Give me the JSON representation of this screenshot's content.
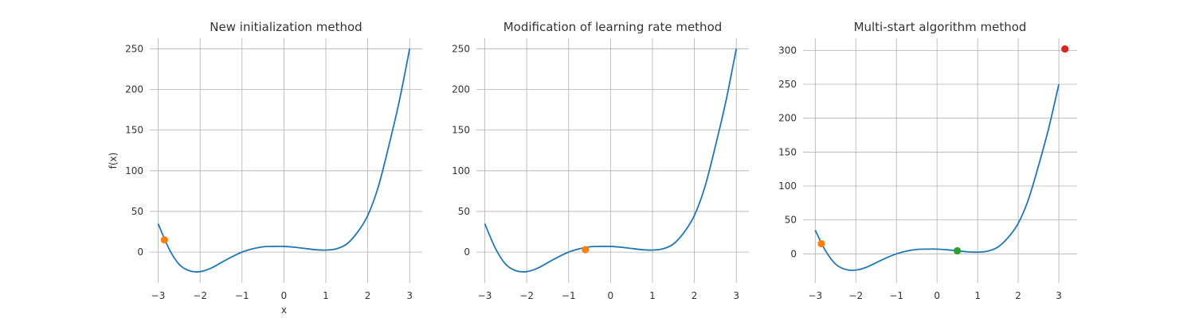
{
  "chart_data": [
    {
      "type": "line",
      "title": "New initialization method",
      "xlabel": "x",
      "ylabel": "f(x)",
      "xlim": [
        -3.2,
        3.3
      ],
      "ylim": [
        -38,
        263
      ],
      "xticks": [
        -3,
        -2,
        -1,
        0,
        1,
        2,
        3
      ],
      "xtick_labels": [
        "−3",
        "−2",
        "−1",
        "0",
        "1",
        "2",
        "3"
      ],
      "yticks": [
        0,
        50,
        100,
        150,
        200,
        250
      ],
      "ytick_labels": [
        "0",
        "50",
        "100",
        "150",
        "200",
        "250"
      ],
      "grid": true,
      "legend": false,
      "series": [
        {
          "color": "#1f77b4",
          "x": [
            -3.0,
            -2.75,
            -2.5,
            -2.25,
            -2.0,
            -1.75,
            -1.5,
            -1.25,
            -1.0,
            -0.75,
            -0.5,
            -0.25,
            0.0,
            0.25,
            0.5,
            0.75,
            1.0,
            1.25,
            1.5,
            1.75,
            2.0,
            2.25,
            2.5,
            2.75,
            3.0
          ],
          "y": [
            35,
            5,
            -15,
            -23,
            -24,
            -20,
            -13,
            -6,
            0,
            4,
            6.5,
            7,
            7,
            6,
            4.5,
            3,
            2.5,
            4,
            10,
            24,
            45,
            80,
            130,
            185,
            250
          ]
        }
      ],
      "points": [
        {
          "x": -2.85,
          "y": 15,
          "color": "#ff7f0e"
        }
      ]
    },
    {
      "type": "line",
      "title": "Modification of learning rate method",
      "xlabel": "",
      "ylabel": "",
      "xlim": [
        -3.2,
        3.3
      ],
      "ylim": [
        -38,
        263
      ],
      "xticks": [
        -3,
        -2,
        -1,
        0,
        1,
        2,
        3
      ],
      "xtick_labels": [
        "−3",
        "−2",
        "−1",
        "0",
        "1",
        "2",
        "3"
      ],
      "yticks": [
        0,
        50,
        100,
        150,
        200,
        250
      ],
      "ytick_labels": [
        "0",
        "50",
        "100",
        "150",
        "200",
        "250"
      ],
      "grid": true,
      "legend": false,
      "series": [
        {
          "color": "#1f77b4",
          "x": [
            -3.0,
            -2.75,
            -2.5,
            -2.25,
            -2.0,
            -1.75,
            -1.5,
            -1.25,
            -1.0,
            -0.75,
            -0.5,
            -0.25,
            0.0,
            0.25,
            0.5,
            0.75,
            1.0,
            1.25,
            1.5,
            1.75,
            2.0,
            2.25,
            2.5,
            2.75,
            3.0
          ],
          "y": [
            35,
            5,
            -15,
            -23,
            -24,
            -20,
            -13,
            -6,
            0,
            4,
            6.5,
            7,
            7,
            6,
            4.5,
            3,
            2.5,
            4,
            10,
            24,
            45,
            80,
            130,
            185,
            250
          ]
        }
      ],
      "points": [
        {
          "x": -0.6,
          "y": 3,
          "color": "#ff7f0e"
        }
      ]
    },
    {
      "type": "line",
      "title": "Multi-start algorithm method",
      "xlabel": "",
      "ylabel": "",
      "xlim": [
        -3.3,
        3.45
      ],
      "ylim": [
        -43,
        318
      ],
      "xticks": [
        -3,
        -2,
        -1,
        0,
        1,
        2,
        3
      ],
      "xtick_labels": [
        "−3",
        "−2",
        "−1",
        "0",
        "1",
        "2",
        "3"
      ],
      "yticks": [
        0,
        50,
        100,
        150,
        200,
        250,
        300
      ],
      "ytick_labels": [
        "0",
        "50",
        "100",
        "150",
        "200",
        "250",
        "300"
      ],
      "grid": true,
      "legend": false,
      "series": [
        {
          "color": "#1f77b4",
          "x": [
            -3.0,
            -2.75,
            -2.5,
            -2.25,
            -2.0,
            -1.75,
            -1.5,
            -1.25,
            -1.0,
            -0.75,
            -0.5,
            -0.25,
            0.0,
            0.25,
            0.5,
            0.75,
            1.0,
            1.25,
            1.5,
            1.75,
            2.0,
            2.25,
            2.5,
            2.75,
            3.0
          ],
          "y": [
            35,
            5,
            -15,
            -23,
            -24,
            -20,
            -13,
            -6,
            0,
            4,
            6.5,
            7,
            7,
            6,
            4.5,
            3,
            2.5,
            4,
            10,
            24,
            45,
            80,
            130,
            185,
            250
          ]
        }
      ],
      "points": [
        {
          "x": -2.85,
          "y": 15,
          "color": "#ff7f0e"
        },
        {
          "x": 0.5,
          "y": 4.5,
          "color": "#2ca02c"
        },
        {
          "x": 3.15,
          "y": 302,
          "color": "#d62728"
        }
      ]
    }
  ]
}
